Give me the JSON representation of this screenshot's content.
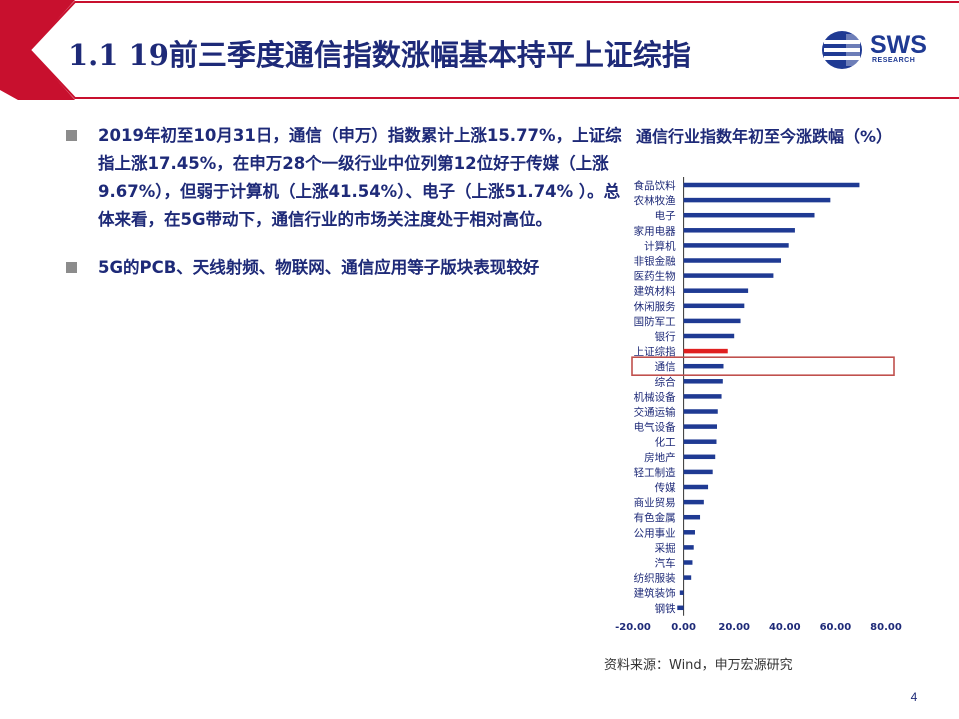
{
  "header": {
    "title": "1.1 19前三季度通信指数涨幅基本持平上证综指",
    "logo_text": "SWS",
    "logo_subtext": "RESEARCH",
    "accent_color": "#c8102e",
    "title_color": "#1e2a78"
  },
  "bullets": [
    {
      "icon": "square-bullet-icon",
      "text": "2019年初至10月31日，通信（申万）指数累计上涨15.77%，上证综指上涨17.45%，在申万28个一级行业中位列第12位好于传媒（上涨9.67%），但弱于计算机（上涨41.54%）、电子（上涨51.74% ）。总体来看，在5G带动下，通信行业的市场关注度处于相对高位。"
    },
    {
      "icon": "square-bullet-icon",
      "text": "5G的PCB、天线射频、物联网、通信应用等子版块表现较好"
    }
  ],
  "chart_data": {
    "type": "bar",
    "orientation": "horizontal",
    "title": "通信行业指数年初至今涨跌幅（%）",
    "xlim": [
      -20,
      80
    ],
    "x_ticks": [
      "-20.00",
      "0.00",
      "20.00",
      "40.00",
      "60.00",
      "80.00"
    ],
    "x_tick_values": [
      -20,
      0,
      20,
      40,
      60,
      80
    ],
    "categories": [
      "食品饮料",
      "农林牧渔",
      "电子",
      "家用电器",
      "计算机",
      "非银金融",
      "医药生物",
      "建筑材料",
      "休闲服务",
      "国防军工",
      "银行",
      "上证综指",
      "通信",
      "综合",
      "机械设备",
      "交通运输",
      "电气设备",
      "化工",
      "房地产",
      "轻工制造",
      "传媒",
      "商业贸易",
      "有色金属",
      "公用事业",
      "采掘",
      "汽车",
      "纺织服装",
      "建筑装饰",
      "钢铁"
    ],
    "values": [
      69.5,
      58,
      51.74,
      44,
      41.54,
      38.5,
      35.5,
      25.5,
      24,
      22.5,
      20,
      17.45,
      15.77,
      15.5,
      15,
      13.5,
      13.2,
      13,
      12.5,
      11.5,
      9.67,
      8,
      6.5,
      4.5,
      4,
      3.5,
      3,
      -1.5,
      -2.5
    ],
    "bar_color": "#1f3a93",
    "highlight_color": "#e02020",
    "highlight_category": "上证综指",
    "boxed_category": "通信",
    "box_color": "#c0504d"
  },
  "footer": {
    "source": "资料来源：Wind，申万宏源研究",
    "page_number": "4"
  }
}
